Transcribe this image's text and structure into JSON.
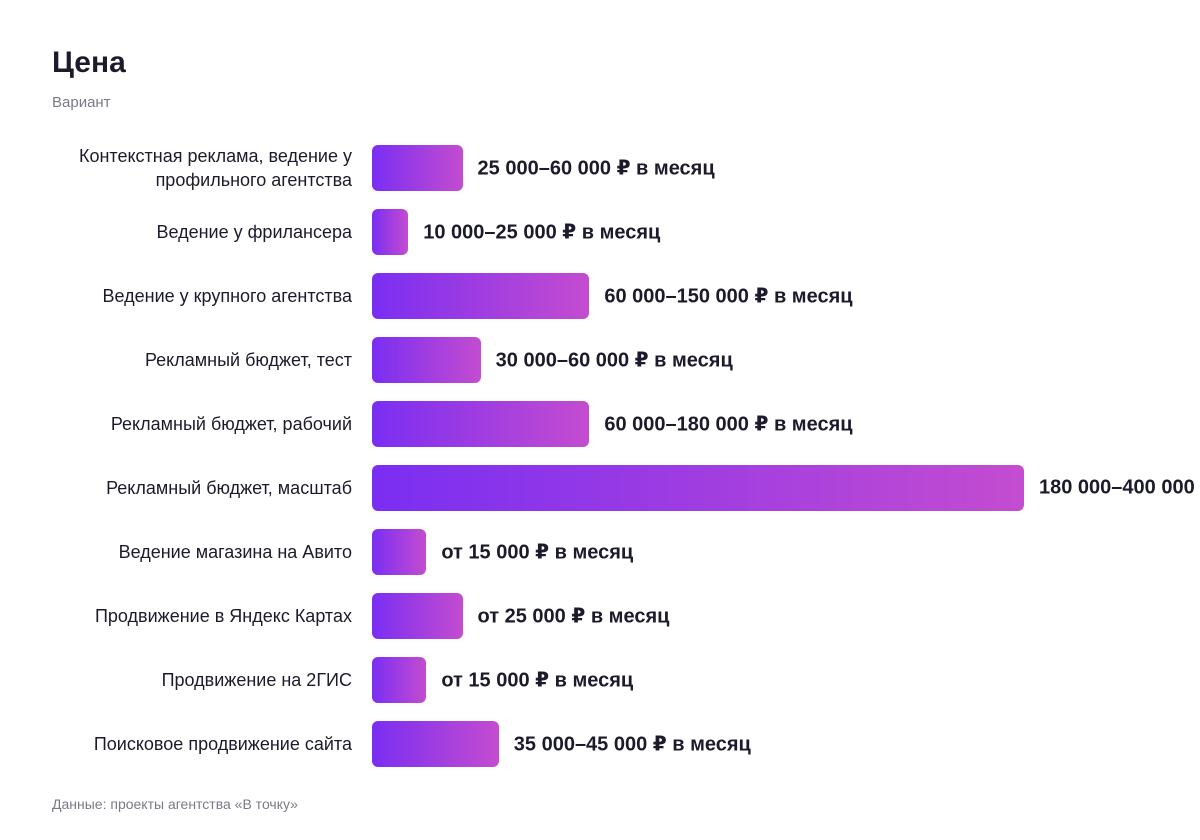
{
  "chart_data": {
    "type": "bar",
    "orientation": "horizontal",
    "title": "Цена",
    "subtitle": "Вариант",
    "categories": [
      "Контекстная реклама, ведение у профильного агентства",
      "Ведение у фрилансера",
      "Ведение у крупного агентства",
      "Рекламный бюджет, тест",
      "Рекламный бюджет, рабочий",
      "Рекламный бюджет, масштаб",
      "Ведение магазина на Авито",
      "Продвижение в Яндекс Картах",
      "Продвижение на 2ГИС",
      "Поисковое продвижение сайта"
    ],
    "values": [
      25000,
      10000,
      60000,
      30000,
      60000,
      180000,
      15000,
      25000,
      15000,
      35000
    ],
    "value_labels": [
      "25 000–60 000 ₽ в месяц",
      "10 000–25 000 ₽ в месяц",
      "60 000–150 000 ₽ в месяц",
      "30 000–60 000 ₽ в месяц",
      "60 000–180 000 ₽ в месяц",
      "180 000–400 000",
      "от 15 000 ₽ в месяц",
      "от 25 000 ₽ в месяц",
      "от 15 000 ₽ в месяц",
      "35 000–45 000 ₽ в месяц"
    ],
    "colors": [
      "#7a2ef2",
      "#c44cd0"
    ],
    "source": "Данные: проекты агентства «В точку»"
  }
}
